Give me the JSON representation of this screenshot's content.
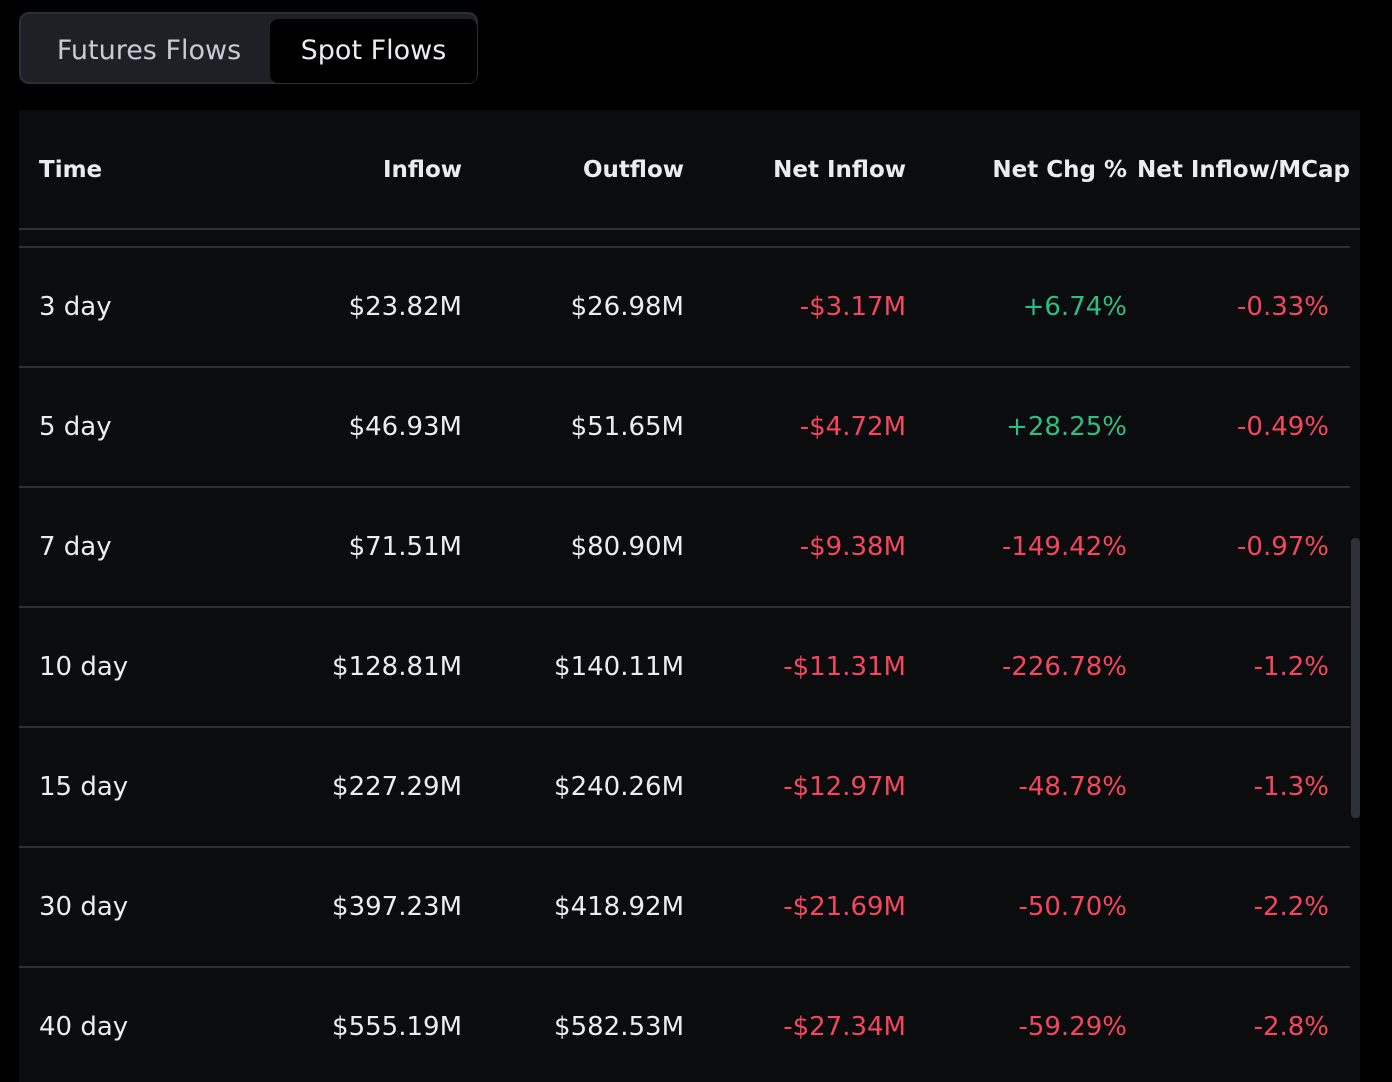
{
  "tabs": {
    "futures_label": "Futures Flows",
    "spot_label": "Spot Flows",
    "active": "Spot Flows"
  },
  "colors": {
    "positive": "#2ebd85",
    "negative": "#f6465d",
    "text": "#eaecef"
  },
  "table": {
    "headers": {
      "time": "Time",
      "inflow": "Inflow",
      "outflow": "Outflow",
      "net_inflow": "Net Inflow",
      "net_chg": "Net Chg %",
      "net_mcap": "Net Inflow/MCap"
    },
    "rows": [
      {
        "time": "3 day",
        "inflow": "$23.82M",
        "outflow": "$26.98M",
        "net_inflow": "-$3.17M",
        "net_chg": "+6.74%",
        "net_mcap": "-0.33%"
      },
      {
        "time": "5 day",
        "inflow": "$46.93M",
        "outflow": "$51.65M",
        "net_inflow": "-$4.72M",
        "net_chg": "+28.25%",
        "net_mcap": "-0.49%"
      },
      {
        "time": "7 day",
        "inflow": "$71.51M",
        "outflow": "$80.90M",
        "net_inflow": "-$9.38M",
        "net_chg": "-149.42%",
        "net_mcap": "-0.97%"
      },
      {
        "time": "10 day",
        "inflow": "$128.81M",
        "outflow": "$140.11M",
        "net_inflow": "-$11.31M",
        "net_chg": "-226.78%",
        "net_mcap": "-1.2%"
      },
      {
        "time": "15 day",
        "inflow": "$227.29M",
        "outflow": "$240.26M",
        "net_inflow": "-$12.97M",
        "net_chg": "-48.78%",
        "net_mcap": "-1.3%"
      },
      {
        "time": "30 day",
        "inflow": "$397.23M",
        "outflow": "$418.92M",
        "net_inflow": "-$21.69M",
        "net_chg": "-50.70%",
        "net_mcap": "-2.2%"
      },
      {
        "time": "40 day",
        "inflow": "$555.19M",
        "outflow": "$582.53M",
        "net_inflow": "-$27.34M",
        "net_chg": "-59.29%",
        "net_mcap": "-2.8%"
      }
    ]
  }
}
